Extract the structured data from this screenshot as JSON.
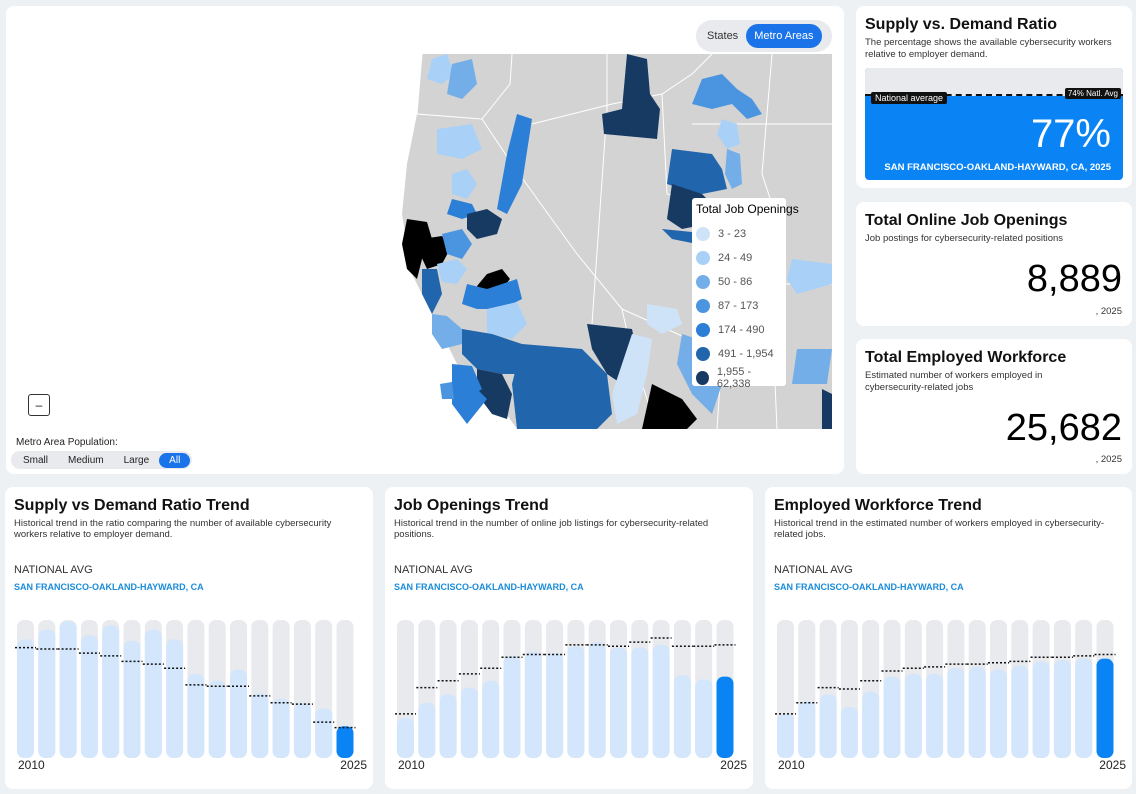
{
  "map": {
    "toggle": [
      {
        "label": "States",
        "active": false
      },
      {
        "label": "Metro Areas",
        "active": true
      }
    ],
    "legend_title": "Total Job Openings",
    "legend": [
      {
        "label": "3 - 23",
        "color": "#cfe3f8"
      },
      {
        "label": "24 - 49",
        "color": "#a9d1f7"
      },
      {
        "label": "50 - 86",
        "color": "#74aee8"
      },
      {
        "label": "87 - 173",
        "color": "#4b95e0"
      },
      {
        "label": "174 - 490",
        "color": "#2b7fd6"
      },
      {
        "label": "491 - 1,954",
        "color": "#2166ac"
      },
      {
        "label": "1,955 - 62,338",
        "color": "#173a63"
      }
    ],
    "zoom_out": "–",
    "population_label": "Metro Area Population:",
    "population_options": [
      {
        "label": "Small",
        "active": false
      },
      {
        "label": "Medium",
        "active": false
      },
      {
        "label": "Large",
        "active": false
      },
      {
        "label": "All",
        "active": true
      }
    ]
  },
  "ratio_card": {
    "title": "Supply vs. Demand Ratio",
    "subtitle": "The percentage shows the available cybersecurity workers relative to employer demand.",
    "national_label": "National average",
    "national_tag": "74% Natl. Avg",
    "value": "77%",
    "location": "SAN FRANCISCO-OAKLAND-HAYWARD, CA, 2025"
  },
  "openings_card": {
    "title": "Total Online Job Openings",
    "subtitle": "Job postings for cybersecurity-related positions",
    "value": "8,889",
    "year": ", 2025"
  },
  "workforce_card": {
    "title": "Total Employed Workforce",
    "subtitle": "Estimated number of workers employed in cybersecurity-related jobs",
    "value": "25,682",
    "year": ", 2025"
  },
  "trends": [
    {
      "title": "Supply vs Demand Ratio Trend",
      "subtitle": "Historical trend in the ratio comparing the number of available cybersecurity workers relative to employer demand.",
      "natl_label": "NATIONAL AVG",
      "location": "SAN FRANCISCO-OAKLAND-HAYWARD, CA",
      "start_year": "2010",
      "end_year": "2025"
    },
    {
      "title": "Job Openings Trend",
      "subtitle": "Historical trend in the number of online job listings for cybersecurity-related positions.",
      "natl_label": "NATIONAL AVG",
      "location": "SAN FRANCISCO-OAKLAND-HAYWARD, CA",
      "start_year": "2010",
      "end_year": "2025"
    },
    {
      "title": "Employed Workforce Trend",
      "subtitle": "Historical trend in the estimated number of workers employed in cybersecurity-related jobs.",
      "natl_label": "NATIONAL AVG",
      "location": "SAN FRANCISCO-OAKLAND-HAYWARD, CA",
      "start_year": "2010",
      "end_year": "2025"
    }
  ],
  "chart_data": [
    {
      "type": "bar",
      "title": "Supply vs Demand Ratio Trend",
      "categories": [
        "2010",
        "2011",
        "2012",
        "2013",
        "2014",
        "2015",
        "2016",
        "2017",
        "2018",
        "2019",
        "2020",
        "2021",
        "2022",
        "2023",
        "2024",
        "2025"
      ],
      "series": [
        {
          "name": "SAN FRANCISCO-OAKLAND-HAYWARD, CA",
          "values": [
            0.86,
            0.93,
            0.99,
            0.89,
            0.96,
            0.85,
            0.93,
            0.86,
            0.61,
            0.56,
            0.64,
            0.47,
            0.43,
            0.4,
            0.36,
            0.23
          ]
        },
        {
          "name": "NATIONAL AVG",
          "values": [
            0.8,
            0.79,
            0.79,
            0.76,
            0.74,
            0.7,
            0.68,
            0.65,
            0.53,
            0.52,
            0.52,
            0.45,
            0.4,
            0.39,
            0.26,
            0.22
          ]
        }
      ],
      "ylim": [
        0,
        1
      ]
    },
    {
      "type": "bar",
      "title": "Job Openings Trend",
      "categories": [
        "2010",
        "2011",
        "2012",
        "2013",
        "2014",
        "2015",
        "2016",
        "2017",
        "2018",
        "2019",
        "2020",
        "2021",
        "2022",
        "2023",
        "2024",
        "2025"
      ],
      "series": [
        {
          "name": "SAN FRANCISCO-OAKLAND-HAYWARD, CA",
          "values": [
            0.29,
            0.4,
            0.46,
            0.51,
            0.56,
            0.74,
            0.77,
            0.76,
            0.81,
            0.84,
            0.8,
            0.8,
            0.82,
            0.6,
            0.57,
            0.59
          ]
        },
        {
          "name": "NATIONAL AVG",
          "values": [
            0.32,
            0.51,
            0.56,
            0.61,
            0.65,
            0.73,
            0.75,
            0.75,
            0.82,
            0.82,
            0.81,
            0.84,
            0.87,
            0.81,
            0.81,
            0.82
          ]
        }
      ],
      "ylim": [
        0,
        1
      ]
    },
    {
      "type": "bar",
      "title": "Employed Workforce Trend",
      "categories": [
        "2010",
        "2011",
        "2012",
        "2013",
        "2014",
        "2015",
        "2016",
        "2017",
        "2018",
        "2019",
        "2020",
        "2021",
        "2022",
        "2023",
        "2024",
        "2025"
      ],
      "series": [
        {
          "name": "SAN FRANCISCO-OAKLAND-HAYWARD, CA",
          "values": [
            0.32,
            0.41,
            0.46,
            0.37,
            0.48,
            0.59,
            0.61,
            0.61,
            0.65,
            0.66,
            0.64,
            0.67,
            0.7,
            0.71,
            0.72,
            0.72
          ]
        },
        {
          "name": "NATIONAL AVG",
          "values": [
            0.32,
            0.4,
            0.51,
            0.5,
            0.56,
            0.63,
            0.65,
            0.66,
            0.68,
            0.68,
            0.69,
            0.7,
            0.73,
            0.73,
            0.74,
            0.75
          ]
        }
      ],
      "ylim": [
        0,
        1
      ]
    }
  ]
}
